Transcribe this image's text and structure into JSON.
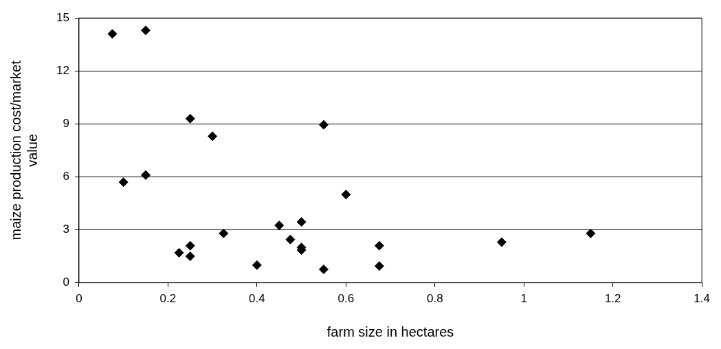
{
  "chart_data": {
    "type": "scatter",
    "xlabel": "farm size in hectares",
    "ylabel": "maize production cost/market value",
    "x": [
      0.075,
      0.15,
      0.1,
      0.15,
      0.25,
      0.3,
      0.55,
      0.6,
      0.225,
      0.25,
      0.25,
      0.325,
      0.4,
      0.45,
      0.475,
      0.5,
      0.5,
      0.5,
      0.55,
      0.675,
      0.675,
      0.95,
      1.15
    ],
    "series": [
      {
        "color": "#000000",
        "values": [
          14.1,
          14.3,
          5.7,
          6.1,
          9.3,
          8.3,
          8.95,
          5.0,
          1.7,
          2.1,
          1.5,
          2.8,
          1.0,
          3.25,
          2.45,
          3.45,
          2.0,
          1.85,
          0.76,
          2.1,
          0.95,
          2.3,
          2.8
        ]
      }
    ],
    "xlim": [
      0,
      1.4
    ],
    "xticks": [
      0,
      0.2,
      0.4,
      0.6,
      0.8,
      1,
      1.2,
      1.4
    ],
    "ylim": [
      0,
      15
    ],
    "yticks": [
      0,
      3,
      6,
      9,
      12,
      15
    ],
    "grid": "y",
    "legend": false,
    "marker": "diamond"
  }
}
